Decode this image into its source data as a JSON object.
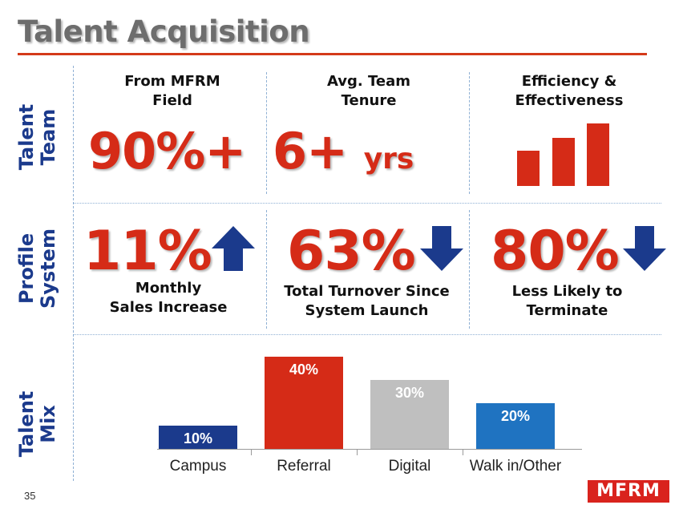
{
  "title": "Talent Acquisition",
  "rows": {
    "talent_team": "Talent\nTeam",
    "profile_system": "Profile\nSystem",
    "talent_mix": "Talent\nMix"
  },
  "team": {
    "col1_head": "From MFRM\nField",
    "col1_value": "90%+",
    "col2_head": "Avg. Team\nTenure",
    "col2_value": "6+",
    "col2_unit": "yrs",
    "col3_head": "Efficiency &\nEffectiveness"
  },
  "profile": {
    "col1_value": "11%",
    "col1_direction": "up",
    "col1_label": "Monthly\nSales Increase",
    "col2_value": "63%",
    "col2_direction": "down",
    "col2_label": "Total Turnover Since\nSystem Launch",
    "col3_value": "80%",
    "col3_direction": "down",
    "col3_label": "Less Likely to\nTerminate"
  },
  "chart_data": {
    "type": "bar",
    "categories": [
      "Campus",
      "Referral",
      "Digital",
      "Walk in/Other"
    ],
    "values": [
      10,
      40,
      30,
      20
    ],
    "labels": [
      "10%",
      "40%",
      "30%",
      "20%"
    ],
    "colors": [
      "#1b3a8c",
      "#d52b17",
      "#bfbfbf",
      "#1f73c1"
    ],
    "title": "",
    "xlabel": "",
    "ylabel": "",
    "ylim": [
      0,
      40
    ]
  },
  "footer": {
    "page_number": "35",
    "logo_text": "MFRM"
  },
  "colors": {
    "accent_red": "#d52b17",
    "navy": "#1b3a8c",
    "title_gray": "#6d6d6d"
  },
  "icons": {
    "efficiency": "ascending-bars-icon",
    "up": "up-arrow-icon",
    "down": "down-arrow-icon"
  }
}
